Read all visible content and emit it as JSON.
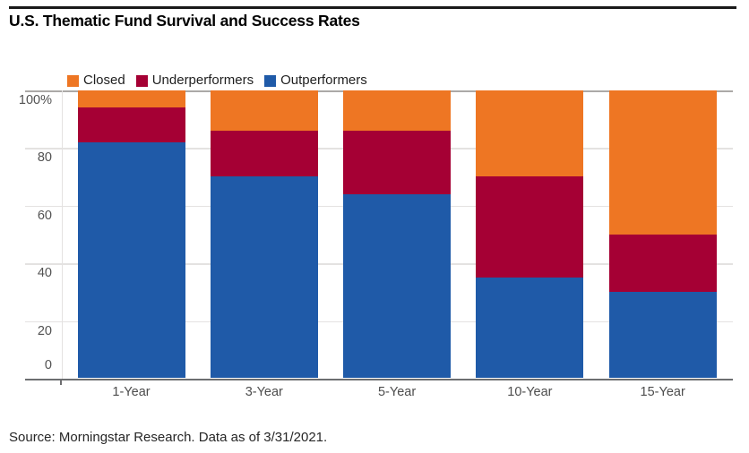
{
  "header": {
    "title": "U.S. Thematic Fund Survival and Success Rates"
  },
  "footer": {
    "source": "Source: Morningstar Research. Data as of 3/31/2021."
  },
  "colors": {
    "closed_orange": "#EE7623",
    "underperformers_red": "#A50034",
    "outperformers_blue": "#1F5AA8",
    "gridline": "#E4E2E1",
    "top_gridline": "#ACA9A7",
    "axis": "#6D6E70"
  },
  "chart_data": {
    "type": "bar",
    "stacked": true,
    "title": "U.S. Thematic Fund Survival and Success Rates",
    "categories": [
      "1-Year",
      "3-Year",
      "5-Year",
      "10-Year",
      "15-Year"
    ],
    "series": [
      {
        "name": "Closed",
        "color": "#EE7623",
        "values": [
          6,
          14,
          14,
          30,
          50
        ]
      },
      {
        "name": "Underperformers",
        "color": "#A50034",
        "values": [
          12,
          16,
          22,
          35,
          20
        ]
      },
      {
        "name": "Outperformers",
        "color": "#1F5AA8",
        "values": [
          82,
          70,
          64,
          35,
          30
        ]
      }
    ],
    "xlabel": "",
    "ylabel": "",
    "ylim": [
      0,
      100
    ],
    "grid": true,
    "legend_position": "top-left",
    "y_ticks": [
      {
        "value": 100,
        "label": "100%"
      },
      {
        "value": 80,
        "label": "80"
      },
      {
        "value": 60,
        "label": "60"
      },
      {
        "value": 40,
        "label": "40"
      },
      {
        "value": 20,
        "label": "20"
      },
      {
        "value": 0,
        "label": "0"
      }
    ]
  }
}
